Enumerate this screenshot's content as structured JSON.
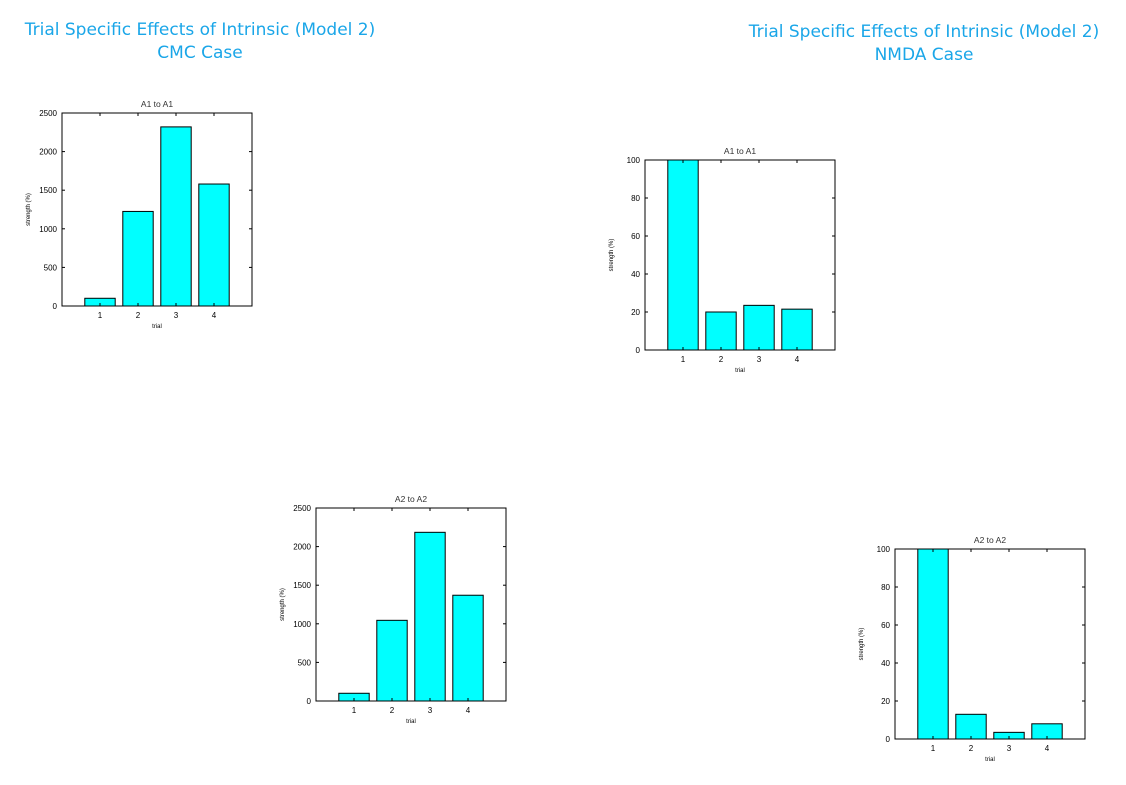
{
  "headings": {
    "cmc": {
      "line1": "Trial Specific Effects of Intrinsic (Model 2)",
      "line2": "CMC Case"
    },
    "nmda": {
      "line1": "Trial Specific Effects of Intrinsic (Model 2)",
      "line2": "NMDA Case"
    }
  },
  "colors": {
    "heading": "#1aa6e8",
    "bar_fill": "#00ffff",
    "bar_stroke": "#000000"
  },
  "chart_data": [
    {
      "id": "cmc-a1",
      "type": "bar",
      "title": "A1 to A1",
      "xlabel": "trial",
      "ylabel": "strength (%)",
      "categories": [
        "1",
        "2",
        "3",
        "4"
      ],
      "values": [
        100,
        1225,
        2320,
        1580
      ],
      "ylim": [
        0,
        2500
      ],
      "yticks": [
        0,
        500,
        1000,
        1500,
        2000,
        2500
      ],
      "grid": false
    },
    {
      "id": "cmc-a2",
      "type": "bar",
      "title": "A2 to A2",
      "xlabel": "trial",
      "ylabel": "strength (%)",
      "categories": [
        "1",
        "2",
        "3",
        "4"
      ],
      "values": [
        100,
        1045,
        2185,
        1370
      ],
      "ylim": [
        0,
        2500
      ],
      "yticks": [
        0,
        500,
        1000,
        1500,
        2000,
        2500
      ],
      "grid": false
    },
    {
      "id": "nmda-a1",
      "type": "bar",
      "title": "A1 to A1",
      "xlabel": "trial",
      "ylabel": "strength (%)",
      "categories": [
        "1",
        "2",
        "3",
        "4"
      ],
      "values": [
        100,
        20,
        23.5,
        21.5
      ],
      "ylim": [
        0,
        100
      ],
      "yticks": [
        0,
        20,
        40,
        60,
        80,
        100
      ],
      "grid": false
    },
    {
      "id": "nmda-a2",
      "type": "bar",
      "title": "A2 to A2",
      "xlabel": "trial",
      "ylabel": "strength (%)",
      "categories": [
        "1",
        "2",
        "3",
        "4"
      ],
      "values": [
        100,
        13,
        3.5,
        8
      ],
      "ylim": [
        0,
        100
      ],
      "yticks": [
        0,
        20,
        40,
        60,
        80,
        100
      ],
      "grid": false
    }
  ]
}
